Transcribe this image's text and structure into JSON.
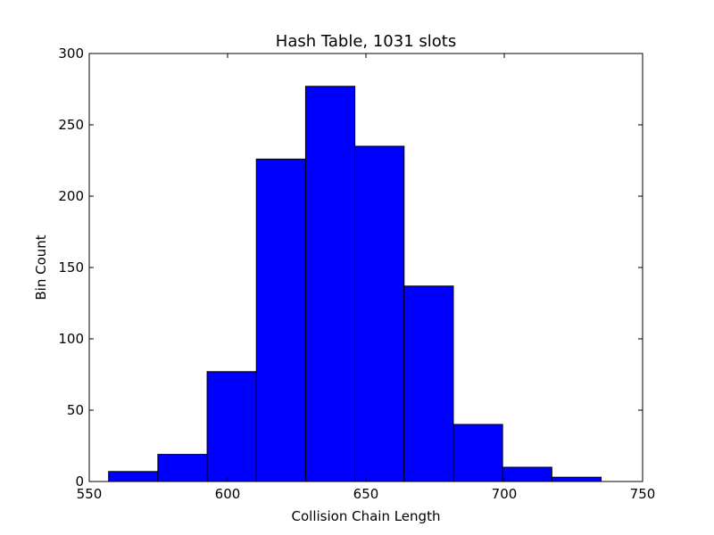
{
  "chart_data": {
    "type": "bar",
    "title": "Hash Table, 1031 slots",
    "xlabel": "Collision Chain Length",
    "ylabel": "Bin Count",
    "xlim": [
      550,
      750
    ],
    "ylim": [
      0,
      300
    ],
    "xticks": [
      550,
      600,
      650,
      700,
      750
    ],
    "yticks": [
      0,
      50,
      100,
      150,
      200,
      250,
      300
    ],
    "bar_color": "#0000ff",
    "edge_color": "#000000",
    "grid": false,
    "bins": [
      {
        "x0": 557.0,
        "x1": 574.8,
        "count": 7
      },
      {
        "x0": 574.8,
        "x1": 592.6,
        "count": 19
      },
      {
        "x0": 592.6,
        "x1": 610.4,
        "count": 77
      },
      {
        "x0": 610.4,
        "x1": 628.2,
        "count": 226
      },
      {
        "x0": 628.2,
        "x1": 646.0,
        "count": 277
      },
      {
        "x0": 646.0,
        "x1": 663.8,
        "count": 235
      },
      {
        "x0": 663.8,
        "x1": 681.6,
        "count": 137
      },
      {
        "x0": 681.6,
        "x1": 699.4,
        "count": 40
      },
      {
        "x0": 699.4,
        "x1": 717.2,
        "count": 10
      },
      {
        "x0": 717.2,
        "x1": 735.0,
        "count": 3
      }
    ]
  }
}
